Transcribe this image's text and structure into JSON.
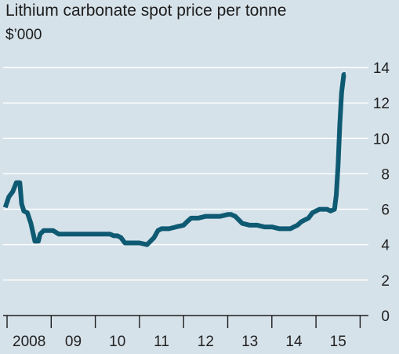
{
  "chart_data": {
    "type": "line",
    "title": "Lithium carbonate spot price per tonne",
    "subtitle": "$’000",
    "xlabel": "",
    "ylabel": "",
    "ylim": [
      0,
      14
    ],
    "y_ticks": [
      "0",
      "2",
      "4",
      "6",
      "8",
      "10",
      "12",
      "14"
    ],
    "x_ticks": [
      "2008",
      "09",
      "10",
      "11",
      "12",
      "13",
      "14",
      "15"
    ],
    "x_range": [
      2008,
      2016
    ],
    "grid": true,
    "legend": "none",
    "line_color": "#0f5a73",
    "series": [
      {
        "x": [
          2007.96,
          2008.04,
          2008.13,
          2008.21,
          2008.29,
          2008.33,
          2008.38,
          2008.46,
          2008.54,
          2008.63,
          2008.71,
          2008.75,
          2008.83,
          2008.88,
          2008.92,
          2009.04,
          2009.17,
          2009.25,
          2009.33,
          2009.5,
          2009.67,
          2009.83,
          2010.0,
          2010.17,
          2010.33,
          2010.42,
          2010.5,
          2010.58,
          2010.67,
          2010.75,
          2010.83,
          2011.0,
          2011.17,
          2011.25,
          2011.33,
          2011.42,
          2011.5,
          2011.58,
          2011.67,
          2011.83,
          2012.0,
          2012.08,
          2012.17,
          2012.25,
          2012.33,
          2012.5,
          2012.67,
          2012.83,
          2013.0,
          2013.08,
          2013.17,
          2013.25,
          2013.33,
          2013.5,
          2013.67,
          2013.83,
          2014.0,
          2014.17,
          2014.33,
          2014.42,
          2014.5,
          2014.58,
          2014.67,
          2014.75,
          2014.83,
          2014.92,
          2015.0,
          2015.08,
          2015.17,
          2015.25,
          2015.33,
          2015.42,
          2015.46,
          2015.5,
          2015.54,
          2015.58,
          2015.63,
          2015.67
        ],
        "y": [
          6.1,
          6.7,
          7.0,
          7.5,
          7.5,
          6.3,
          5.9,
          5.8,
          5.2,
          4.2,
          4.2,
          4.6,
          4.8,
          4.8,
          4.8,
          4.8,
          4.6,
          4.6,
          4.6,
          4.6,
          4.6,
          4.6,
          4.6,
          4.6,
          4.6,
          4.5,
          4.5,
          4.4,
          4.1,
          4.1,
          4.1,
          4.1,
          4.0,
          4.2,
          4.4,
          4.8,
          4.9,
          4.9,
          4.9,
          5.0,
          5.1,
          5.3,
          5.5,
          5.5,
          5.5,
          5.6,
          5.6,
          5.6,
          5.7,
          5.7,
          5.6,
          5.4,
          5.2,
          5.1,
          5.1,
          5.0,
          5.0,
          4.9,
          4.9,
          4.9,
          5.0,
          5.1,
          5.3,
          5.4,
          5.5,
          5.8,
          5.9,
          6.0,
          6.0,
          6.0,
          5.9,
          6.0,
          6.8,
          8.5,
          10.8,
          12.6,
          13.6,
          13.6
        ]
      }
    ]
  }
}
